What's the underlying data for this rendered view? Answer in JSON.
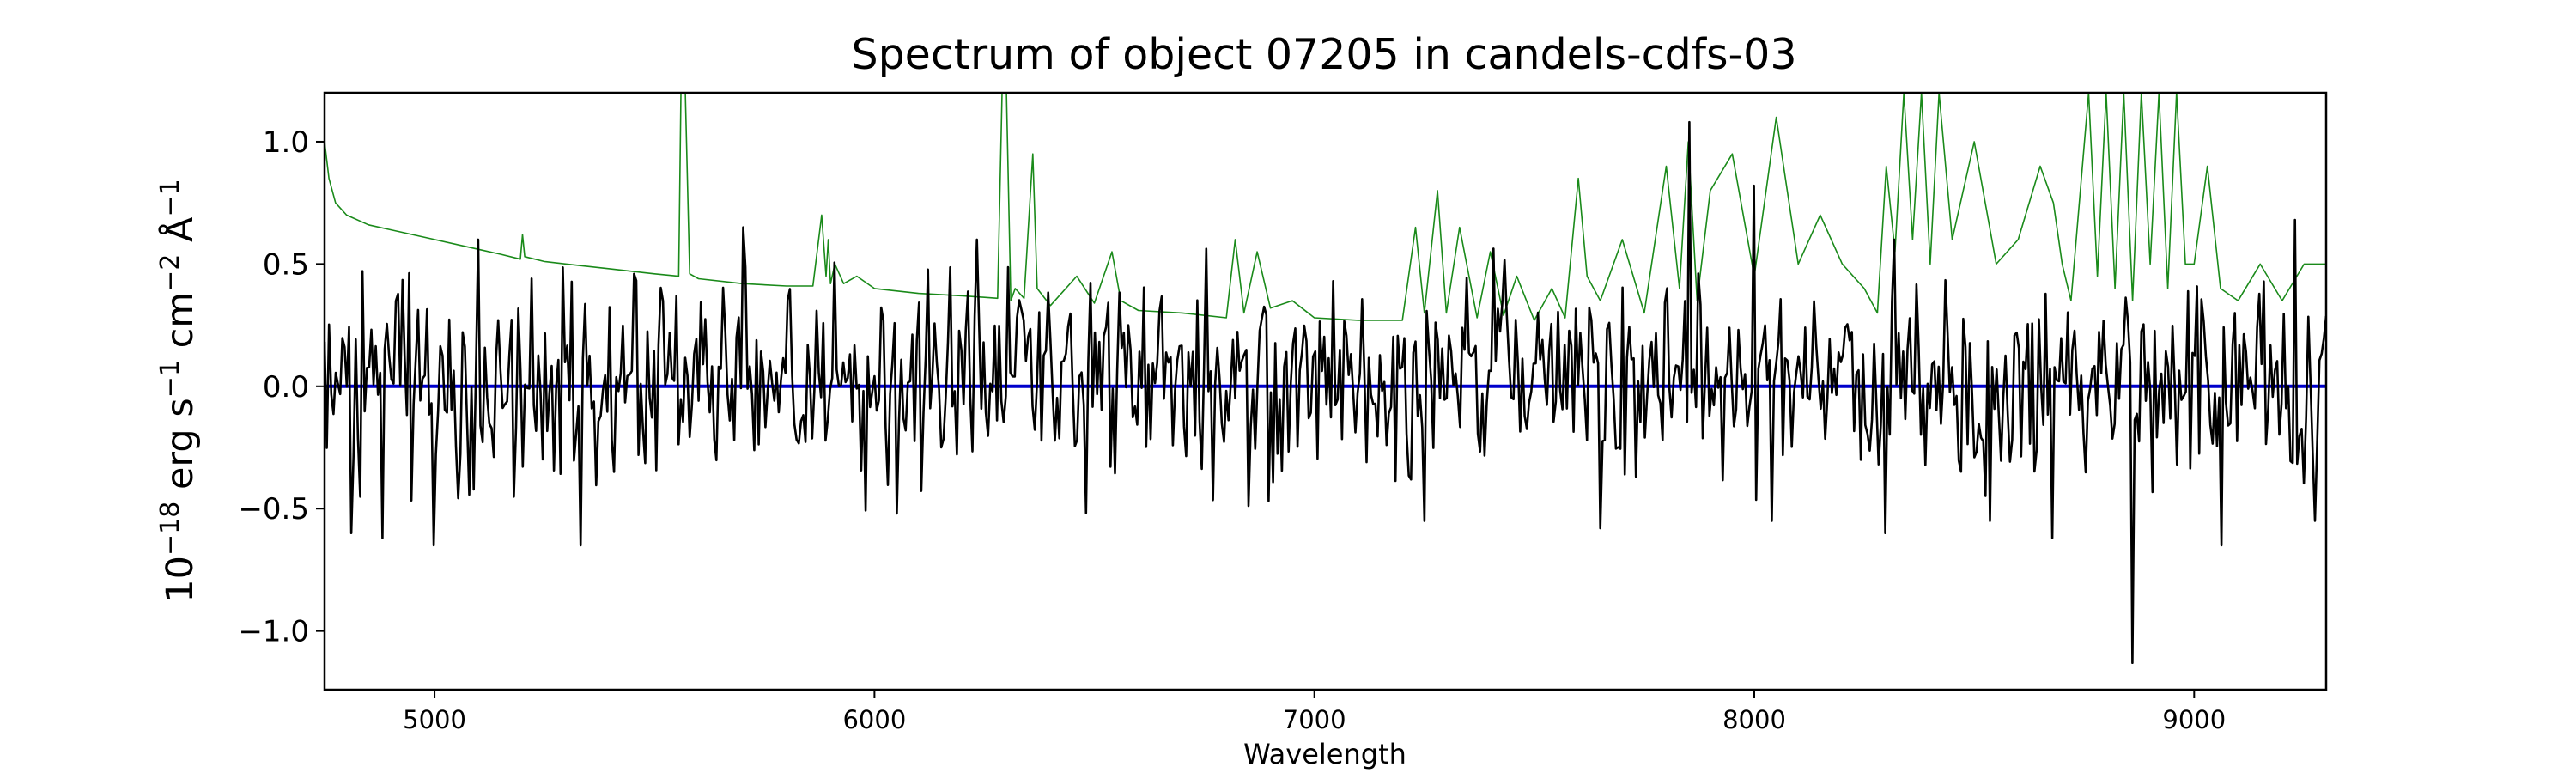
{
  "chart_data": {
    "type": "line",
    "title": "Spectrum of object 07205 in candels-cdfs-03",
    "xlabel": "Wavelength",
    "ylabel": {
      "base": "10",
      "base_exp": "−18",
      "erg": " erg s",
      "s_exp": "−1",
      "cm": " cm",
      "cm_exp": "−2",
      "ang": " Å",
      "ang_exp": "−1"
    },
    "xlim": [
      4750,
      9300
    ],
    "ylim": [
      -1.24,
      1.2
    ],
    "xticks": [
      {
        "value": 5000,
        "label": "5000"
      },
      {
        "value": 6000,
        "label": "6000"
      },
      {
        "value": 7000,
        "label": "7000"
      },
      {
        "value": 8000,
        "label": "8000"
      },
      {
        "value": 9000,
        "label": "9000"
      }
    ],
    "yticks": [
      {
        "value": 1.0,
        "label": "1.0"
      },
      {
        "value": 0.5,
        "label": "0.5"
      },
      {
        "value": 0.0,
        "label": "0.0"
      },
      {
        "value": -0.5,
        "label": "−0.5"
      },
      {
        "value": -1.0,
        "label": "−1.0"
      }
    ],
    "grid": false,
    "series": [
      {
        "color": "#1a8a1a",
        "style": "thin",
        "x": [
          4750,
          4760,
          4775,
          4800,
          4850,
          4900,
          5000,
          5100,
          5150,
          5195,
          5200,
          5205,
          5250,
          5300,
          5400,
          5500,
          5555,
          5560,
          5570,
          5580,
          5600,
          5700,
          5800,
          5860,
          5880,
          5890,
          5895,
          5900,
          5910,
          5930,
          5960,
          6000,
          6100,
          6200,
          6280,
          6290,
          6300,
          6310,
          6320,
          6340,
          6360,
          6370,
          6400,
          6460,
          6500,
          6540,
          6560,
          6600,
          6700,
          6800,
          6820,
          6840,
          6870,
          6900,
          6950,
          7000,
          7100,
          7200,
          7230,
          7250,
          7280,
          7300,
          7330,
          7370,
          7400,
          7430,
          7460,
          7500,
          7540,
          7570,
          7600,
          7620,
          7650,
          7700,
          7750,
          7800,
          7830,
          7850,
          7870,
          7900,
          7950,
          8000,
          8050,
          8100,
          8150,
          8200,
          8250,
          8280,
          8300,
          8320,
          8340,
          8360,
          8380,
          8400,
          8420,
          8450,
          8500,
          8550,
          8600,
          8650,
          8680,
          8700,
          8720,
          8760,
          8780,
          8800,
          8820,
          8840,
          8860,
          8880,
          8900,
          8920,
          8940,
          8960,
          8980,
          9000,
          9030,
          9060,
          9100,
          9150,
          9200,
          9250,
          9300
        ],
        "y": [
          1.0,
          0.85,
          0.75,
          0.7,
          0.66,
          0.64,
          0.6,
          0.56,
          0.54,
          0.52,
          0.62,
          0.53,
          0.51,
          0.5,
          0.48,
          0.46,
          0.45,
          1.2,
          1.2,
          0.46,
          0.44,
          0.42,
          0.41,
          0.41,
          0.7,
          0.45,
          0.6,
          0.42,
          0.5,
          0.42,
          0.45,
          0.4,
          0.38,
          0.37,
          0.36,
          1.2,
          1.2,
          0.35,
          0.4,
          0.36,
          0.95,
          0.4,
          0.33,
          0.45,
          0.34,
          0.55,
          0.35,
          0.31,
          0.3,
          0.28,
          0.6,
          0.3,
          0.55,
          0.32,
          0.35,
          0.28,
          0.27,
          0.27,
          0.65,
          0.3,
          0.8,
          0.3,
          0.65,
          0.28,
          0.55,
          0.29,
          0.45,
          0.27,
          0.4,
          0.28,
          0.85,
          0.45,
          0.35,
          0.6,
          0.3,
          0.9,
          0.4,
          1.0,
          0.35,
          0.8,
          0.95,
          0.45,
          1.1,
          0.5,
          0.7,
          0.5,
          0.4,
          0.3,
          0.9,
          0.55,
          1.2,
          0.6,
          1.2,
          0.5,
          1.2,
          0.6,
          1.0,
          0.5,
          0.6,
          0.9,
          0.75,
          0.5,
          0.35,
          1.2,
          0.45,
          1.2,
          0.4,
          1.2,
          0.35,
          1.2,
          0.5,
          1.2,
          0.4,
          1.2,
          0.5,
          0.5,
          0.9,
          0.4,
          0.35,
          0.5,
          0.35,
          0.5,
          0.5
        ]
      },
      {
        "color": "#0000cc",
        "style": "thick",
        "x": [
          4750,
          9300
        ],
        "y": [
          0.0,
          0.0
        ]
      },
      {
        "color": "#000000",
        "style": "noise",
        "x_start": 4750,
        "x_end": 9300,
        "samples": 900,
        "seed": 7205,
        "sigma": 0.2,
        "extremes": [
          {
            "x": 4810,
            "y": -0.6
          },
          {
            "x": 4880,
            "y": -0.62
          },
          {
            "x": 5000,
            "y": -0.65
          },
          {
            "x": 5330,
            "y": -0.65
          },
          {
            "x": 5700,
            "y": 0.65
          },
          {
            "x": 6050,
            "y": -0.52
          },
          {
            "x": 7250,
            "y": -0.55
          },
          {
            "x": 7650,
            "y": -0.58
          },
          {
            "x": 7850,
            "y": 1.08
          },
          {
            "x": 8000,
            "y": 0.82
          },
          {
            "x": 8300,
            "y": -0.6
          },
          {
            "x": 8680,
            "y": -0.62
          },
          {
            "x": 8860,
            "y": -1.13
          },
          {
            "x": 9060,
            "y": -0.65
          },
          {
            "x": 9230,
            "y": 0.68
          }
        ]
      }
    ]
  }
}
